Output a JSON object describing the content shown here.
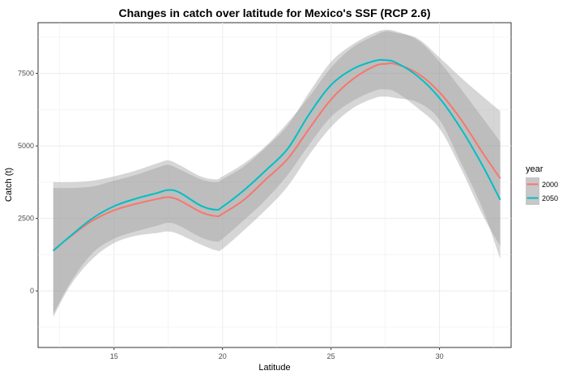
{
  "chart_data": {
    "type": "line",
    "title": "Changes in catch over latitude for Mexico's SSF (RCP 2.6)",
    "xlabel": "Latitude",
    "ylabel": "Catch (t)",
    "xlim": [
      11.5,
      33.3
    ],
    "ylim": [
      -1950,
      9250
    ],
    "x_ticks": [
      15,
      20,
      25,
      30
    ],
    "y_ticks": [
      0,
      2500,
      5000,
      7500
    ],
    "grid": true,
    "legend": {
      "title": "year",
      "placement": "right"
    },
    "x": [
      12.2,
      13,
      14,
      15,
      16,
      17,
      17.5,
      18,
      19,
      19.7,
      20,
      21,
      22,
      23,
      24,
      25,
      26,
      27,
      27.5,
      28,
      29,
      30,
      31,
      32,
      32.8
    ],
    "series": [
      {
        "name": "2000",
        "color": "#F8766D",
        "values": [
          1400,
          1880,
          2420,
          2780,
          3000,
          3170,
          3230,
          3130,
          2720,
          2580,
          2660,
          3150,
          3850,
          4550,
          5600,
          6600,
          7300,
          7750,
          7830,
          7820,
          7500,
          6850,
          5900,
          4750,
          3880
        ],
        "ci_low": [
          -900,
          200,
          1100,
          1650,
          1900,
          2000,
          2050,
          1950,
          1600,
          1400,
          1450,
          2100,
          2800,
          3600,
          4700,
          5650,
          6300,
          6650,
          6700,
          6650,
          6500,
          5900,
          4400,
          2800,
          1100
        ],
        "ci_high": [
          3750,
          3750,
          3800,
          3950,
          4150,
          4400,
          4500,
          4350,
          3950,
          3850,
          3950,
          4400,
          5000,
          5800,
          6700,
          7700,
          8400,
          8800,
          8950,
          8900,
          8700,
          8050,
          7350,
          6700,
          6200
        ]
      },
      {
        "name": "2050",
        "color": "#00BFC4",
        "values": [
          1380,
          1900,
          2500,
          2920,
          3180,
          3380,
          3480,
          3400,
          2940,
          2800,
          2900,
          3480,
          4160,
          4900,
          6100,
          7100,
          7650,
          7930,
          7960,
          7870,
          7400,
          6650,
          5580,
          4300,
          3140
        ],
        "ci_low": [
          -800,
          300,
          1300,
          1800,
          2050,
          2250,
          2350,
          2250,
          1850,
          1700,
          1800,
          2450,
          3150,
          4000,
          5050,
          6000,
          6550,
          6900,
          6950,
          6850,
          6300,
          5600,
          4200,
          2600,
          1550
        ],
        "ci_high": [
          3550,
          3550,
          3600,
          3800,
          4000,
          4250,
          4350,
          4200,
          3850,
          3750,
          3850,
          4300,
          4950,
          5700,
          6850,
          7900,
          8500,
          8900,
          9000,
          8950,
          8650,
          7900,
          6950,
          5950,
          5150
        ]
      }
    ]
  }
}
